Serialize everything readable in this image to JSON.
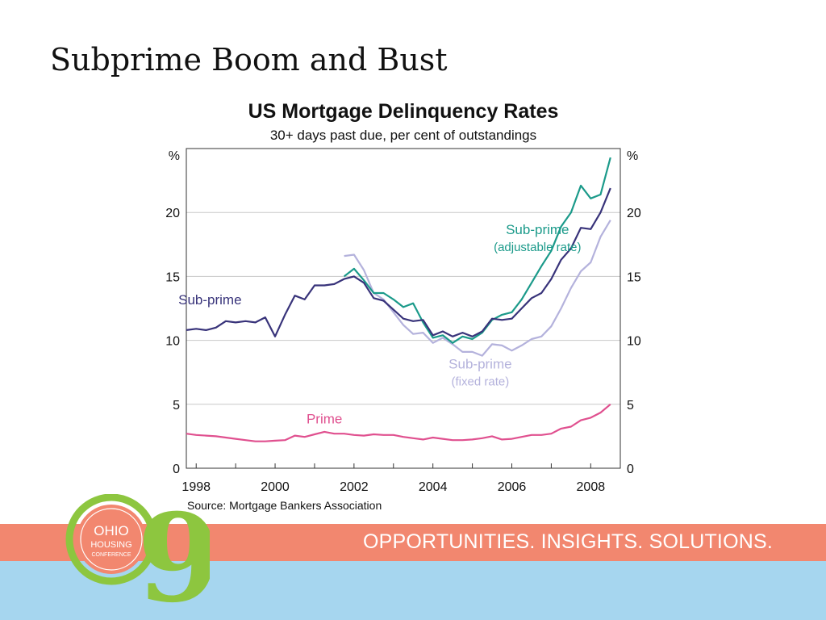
{
  "slide": {
    "title": "Subprime Boom and Bust"
  },
  "footer": {
    "tagline": "OPPORTUNITIES. INSIGHTS. SOLUTIONS.",
    "logo": {
      "line1": "OHIO",
      "line2": "HOUSING",
      "line3": "CONFERENCE",
      "numeral": "9"
    },
    "colors": {
      "orange": "#f2876f",
      "blue": "#a6d6ef",
      "logo_green": "#8dc63f",
      "logo_orange": "#f2876f"
    }
  },
  "chart_data": {
    "type": "line",
    "title": "US Mortgage Delinquency Rates",
    "subtitle": "30+ days past due, per cent of outstandings",
    "source": "Source: Mortgage Bankers Association",
    "y_unit_left": "%",
    "y_unit_right": "%",
    "ylim": [
      0,
      25
    ],
    "yticks": [
      0,
      5,
      10,
      15,
      20
    ],
    "xlim": [
      1997.75,
      2008.75
    ],
    "xticks": [
      1998,
      2000,
      2002,
      2004,
      2006,
      2008
    ],
    "grid": true,
    "series": [
      {
        "name": "Sub-prime",
        "label_lines": [
          "Sub-prime"
        ],
        "color": "#38337a",
        "label_anchor": [
          1998.35,
          12.8
        ],
        "x": [
          1997.75,
          1998,
          1998.25,
          1998.5,
          1998.75,
          1999,
          1999.25,
          1999.5,
          1999.75,
          2000,
          2000.25,
          2000.5,
          2000.75,
          2001,
          2001.25,
          2001.5,
          2001.75,
          2002,
          2002.25,
          2002.5,
          2002.75,
          2003,
          2003.25,
          2003.5,
          2003.75,
          2004,
          2004.25,
          2004.5,
          2004.75,
          2005,
          2005.25,
          2005.5,
          2005.75,
          2006,
          2006.25,
          2006.5,
          2006.75,
          2007,
          2007.25,
          2007.5,
          2007.75,
          2008,
          2008.25,
          2008.5
        ],
        "values": [
          10.8,
          10.9,
          10.8,
          11,
          11.5,
          11.4,
          11.5,
          11.4,
          11.8,
          10.3,
          12,
          13.5,
          13.2,
          14.3,
          14.3,
          14.4,
          14.8,
          15,
          14.5,
          13.3,
          13.1,
          12.4,
          11.7,
          11.5,
          11.6,
          10.4,
          10.7,
          10.3,
          10.6,
          10.3,
          10.7,
          11.7,
          11.6,
          11.7,
          12.5,
          13.3,
          13.7,
          14.8,
          16.3,
          17.2,
          18.8,
          18.7,
          20,
          21.9
        ]
      },
      {
        "name": "Sub-prime (adjustable rate)",
        "label_lines": [
          "Sub-prime",
          "(adjustable rate)"
        ],
        "color": "#1b9a8a",
        "label_anchor": [
          2006.65,
          18.3
        ],
        "x": [
          2001.75,
          2002,
          2002.25,
          2002.5,
          2002.75,
          2003,
          2003.25,
          2003.5,
          2003.75,
          2004,
          2004.25,
          2004.5,
          2004.75,
          2005,
          2005.25,
          2005.5,
          2005.75,
          2006,
          2006.25,
          2006.5,
          2006.75,
          2007,
          2007.25,
          2007.5,
          2007.75,
          2008,
          2008.25,
          2008.5
        ],
        "values": [
          15,
          15.6,
          14.7,
          13.7,
          13.7,
          13.2,
          12.6,
          12.9,
          11.4,
          10.2,
          10.4,
          9.8,
          10.3,
          10.1,
          10.6,
          11.6,
          12,
          12.2,
          13.2,
          14.5,
          15.8,
          17,
          18.9,
          20,
          22.1,
          21.1,
          21.4,
          24.3
        ]
      },
      {
        "name": "Sub-prime (fixed rate)",
        "label_lines": [
          "Sub-prime",
          "(fixed rate)"
        ],
        "color": "#b4b2dc",
        "label_anchor": [
          2005.2,
          7.8
        ],
        "x": [
          2001.75,
          2002,
          2002.25,
          2002.5,
          2002.75,
          2003,
          2003.25,
          2003.5,
          2003.75,
          2004,
          2004.25,
          2004.5,
          2004.75,
          2005,
          2005.25,
          2005.5,
          2005.75,
          2006,
          2006.25,
          2006.5,
          2006.75,
          2007,
          2007.25,
          2007.5,
          2007.75,
          2008,
          2008.25,
          2008.5
        ],
        "values": [
          16.6,
          16.7,
          15.5,
          13.7,
          13.2,
          12.2,
          11.2,
          10.5,
          10.6,
          9.8,
          10.2,
          9.7,
          9.1,
          9.1,
          8.8,
          9.7,
          9.6,
          9.2,
          9.6,
          10.1,
          10.3,
          11.1,
          12.5,
          14.1,
          15.4,
          16.1,
          18.1,
          19.4
        ]
      },
      {
        "name": "Prime",
        "label_lines": [
          "Prime"
        ],
        "color": "#e0508f",
        "label_anchor": [
          2001.25,
          3.5
        ],
        "x": [
          1997.75,
          1998,
          1998.25,
          1998.5,
          1998.75,
          1999,
          1999.25,
          1999.5,
          1999.75,
          2000,
          2000.25,
          2000.5,
          2000.75,
          2001,
          2001.25,
          2001.5,
          2001.75,
          2002,
          2002.25,
          2002.5,
          2002.75,
          2003,
          2003.25,
          2003.5,
          2003.75,
          2004,
          2004.25,
          2004.5,
          2004.75,
          2005,
          2005.25,
          2005.5,
          2005.75,
          2006,
          2006.25,
          2006.5,
          2006.75,
          2007,
          2007.25,
          2007.5,
          2007.75,
          2008,
          2008.25,
          2008.5
        ],
        "values": [
          2.7,
          2.6,
          2.55,
          2.5,
          2.4,
          2.3,
          2.2,
          2.1,
          2.1,
          2.15,
          2.2,
          2.55,
          2.45,
          2.65,
          2.85,
          2.7,
          2.7,
          2.6,
          2.55,
          2.65,
          2.6,
          2.6,
          2.45,
          2.35,
          2.25,
          2.4,
          2.3,
          2.2,
          2.2,
          2.25,
          2.35,
          2.5,
          2.25,
          2.3,
          2.45,
          2.6,
          2.6,
          2.7,
          3.1,
          3.25,
          3.75,
          3.95,
          4.35,
          5
        ]
      }
    ]
  }
}
